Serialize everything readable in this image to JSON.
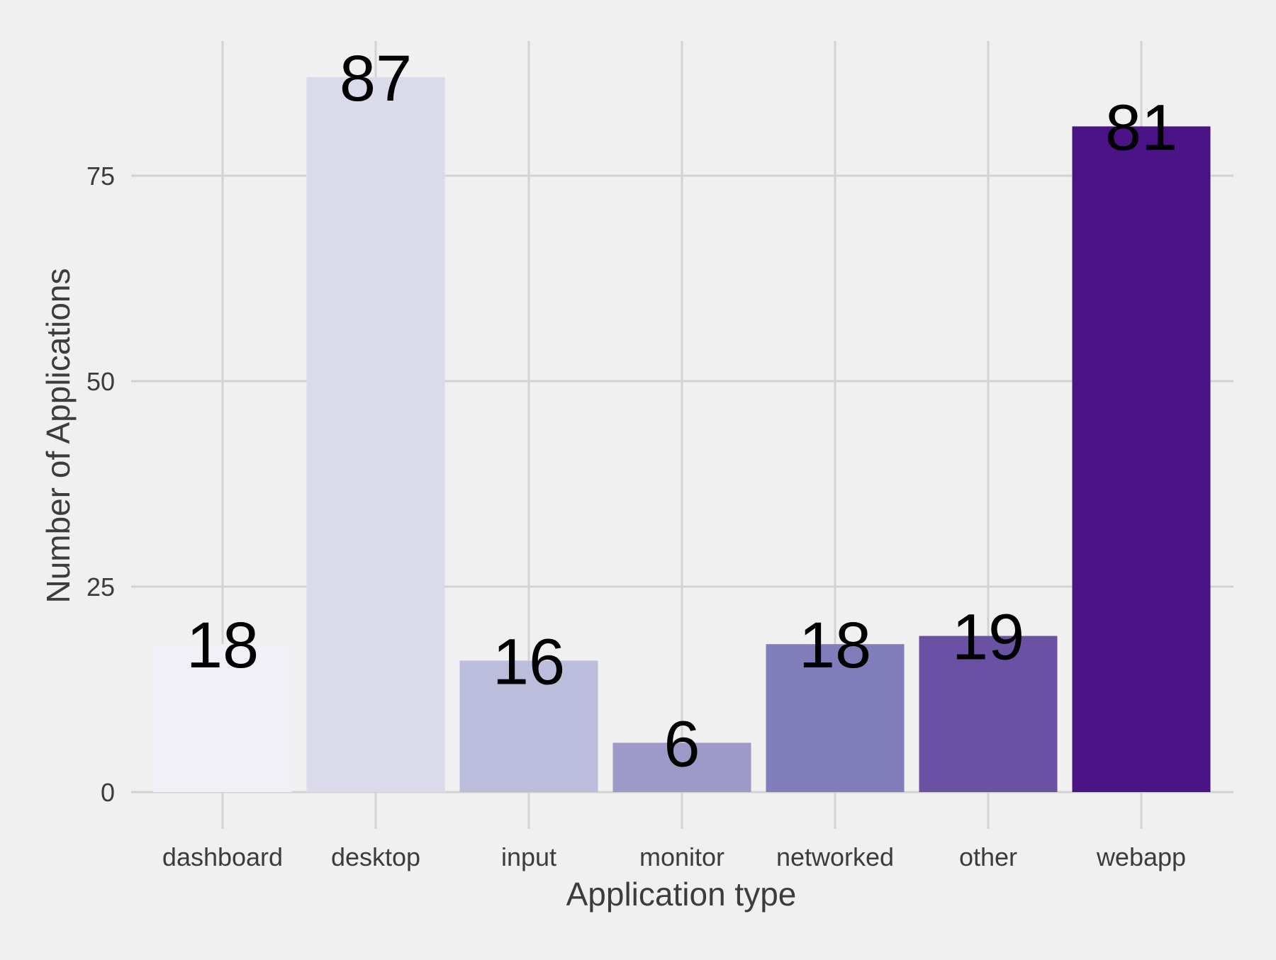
{
  "chart_data": {
    "type": "bar",
    "title": "",
    "xlabel": "Application type",
    "ylabel": "Number of Applications",
    "categories": [
      "dashboard",
      "desktop",
      "input",
      "monitor",
      "networked",
      "other",
      "webapp"
    ],
    "values": [
      18,
      87,
      16,
      6,
      18,
      19,
      81
    ],
    "value_labels": [
      "18",
      "87",
      "16",
      "6",
      "18",
      "19",
      "81"
    ],
    "bar_colors": [
      "#f2f0f7",
      "#dadaeb",
      "#bcbddc",
      "#9e9ac8",
      "#807dba",
      "#6a51a3",
      "#4a1486"
    ],
    "yticks": [
      0,
      25,
      50,
      75
    ],
    "ytick_labels": [
      "0",
      "25",
      "50",
      "75"
    ],
    "ylim": [
      -3,
      92
    ],
    "grid": true,
    "legend": "none",
    "background": "#f0f0f0",
    "grid_color": "#d2d2d2"
  }
}
